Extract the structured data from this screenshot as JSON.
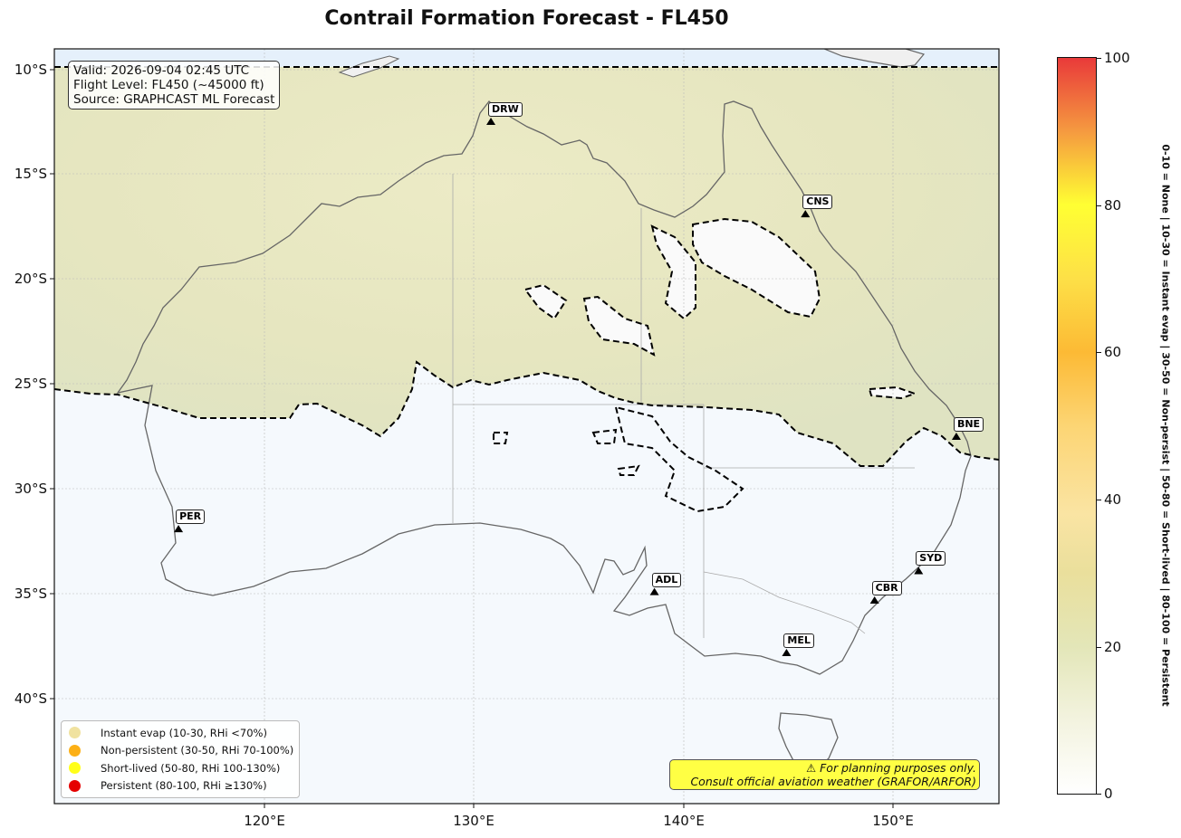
{
  "title": "Contrail Formation Forecast - FL450",
  "info_box": {
    "valid": "Valid: 2026-09-04 02:45 UTC",
    "flight_level": "Flight Level: FL450 (~45000 ft)",
    "source": "Source: GRAPHCAST ML Forecast"
  },
  "axes": {
    "lon_ticks": [
      "120°E",
      "130°E",
      "140°E",
      "150°E"
    ],
    "lat_ticks": [
      "10°S",
      "15°S",
      "20°S",
      "25°S",
      "30°S",
      "35°S",
      "40°S"
    ]
  },
  "cities": [
    {
      "code": "DRW",
      "lon": 130.8,
      "lat": -12.5
    },
    {
      "code": "CNS",
      "lon": 145.8,
      "lat": -16.9
    },
    {
      "code": "BNE",
      "lon": 153.0,
      "lat": -27.5
    },
    {
      "code": "PER",
      "lon": 115.9,
      "lat": -31.9
    },
    {
      "code": "SYD",
      "lon": 151.2,
      "lat": -33.9
    },
    {
      "code": "ADL",
      "lon": 138.6,
      "lat": -34.9
    },
    {
      "code": "CBR",
      "lon": 149.1,
      "lat": -35.3
    },
    {
      "code": "MEL",
      "lon": 144.9,
      "lat": -37.8
    }
  ],
  "legend": [
    {
      "label": "Instant evap (10-30, RHi <70%)",
      "color": "#f0e2a0"
    },
    {
      "label": "Non-persistent (30-50, RHi 70-100%)",
      "color": "#fcb016"
    },
    {
      "label": "Short-lived (50-80, RHi 100-130%)",
      "color": "#ffff1a"
    },
    {
      "label": "Persistent (80-100, RHi ≥130%)",
      "color": "#e50000"
    }
  ],
  "disclaimer": {
    "line1": "⚠ For planning purposes only.",
    "line2": "Consult official aviation weather (GRAFOR/ARFOR)"
  },
  "colorbar": {
    "ticks": [
      "0",
      "20",
      "40",
      "60",
      "80",
      "100"
    ],
    "label": "0-10 = None  |  10-30 = Instant evap  |  30-50 = Non-persist  |  50-80 = Short-lived  |  80-100 = Persistent"
  }
}
